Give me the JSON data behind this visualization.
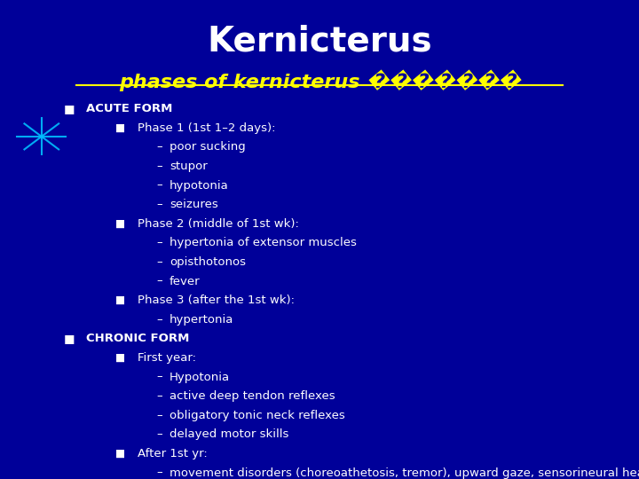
{
  "title": "Kernicterus",
  "subtitle": "phases of kernicterus �������",
  "bg_color": "#000099",
  "title_color": "#FFFFFF",
  "subtitle_color": "#FFFF00",
  "bullet_color": "#FFFFFF",
  "title_fontsize": 28,
  "subtitle_fontsize": 16,
  "content_fontsize": 9.5,
  "star_color": "#00BFFF",
  "content": [
    {
      "level": 0,
      "text": "ACUTE FORM"
    },
    {
      "level": 1,
      "text": "Phase 1 (1st 1–2 days):"
    },
    {
      "level": 2,
      "text": "poor sucking"
    },
    {
      "level": 2,
      "text": "stupor"
    },
    {
      "level": 2,
      "text": "hypotonia"
    },
    {
      "level": 2,
      "text": "seizures"
    },
    {
      "level": 1,
      "text": "Phase 2 (middle of 1st wk):"
    },
    {
      "level": 2,
      "text": "hypertonia of extensor muscles"
    },
    {
      "level": 2,
      "text": "opisthotonos"
    },
    {
      "level": 2,
      "text": "fever"
    },
    {
      "level": 1,
      "text": "Phase 3 (after the 1st wk):"
    },
    {
      "level": 2,
      "text": "hypertonia"
    },
    {
      "level": 0,
      "text": "CHRONIC FORM"
    },
    {
      "level": 1,
      "text": "First year:"
    },
    {
      "level": 2,
      "text": "Hypotonia"
    },
    {
      "level": 2,
      "text": "active deep tendon reflexes"
    },
    {
      "level": 2,
      "text": "obligatory tonic neck reflexes"
    },
    {
      "level": 2,
      "text": "delayed motor skills"
    },
    {
      "level": 1,
      "text": "After 1st yr:"
    },
    {
      "level": 2,
      "text": "movement disorders (choreoathetosis, tremor), upward gaze, sensorineural hearing\nloss"
    }
  ]
}
